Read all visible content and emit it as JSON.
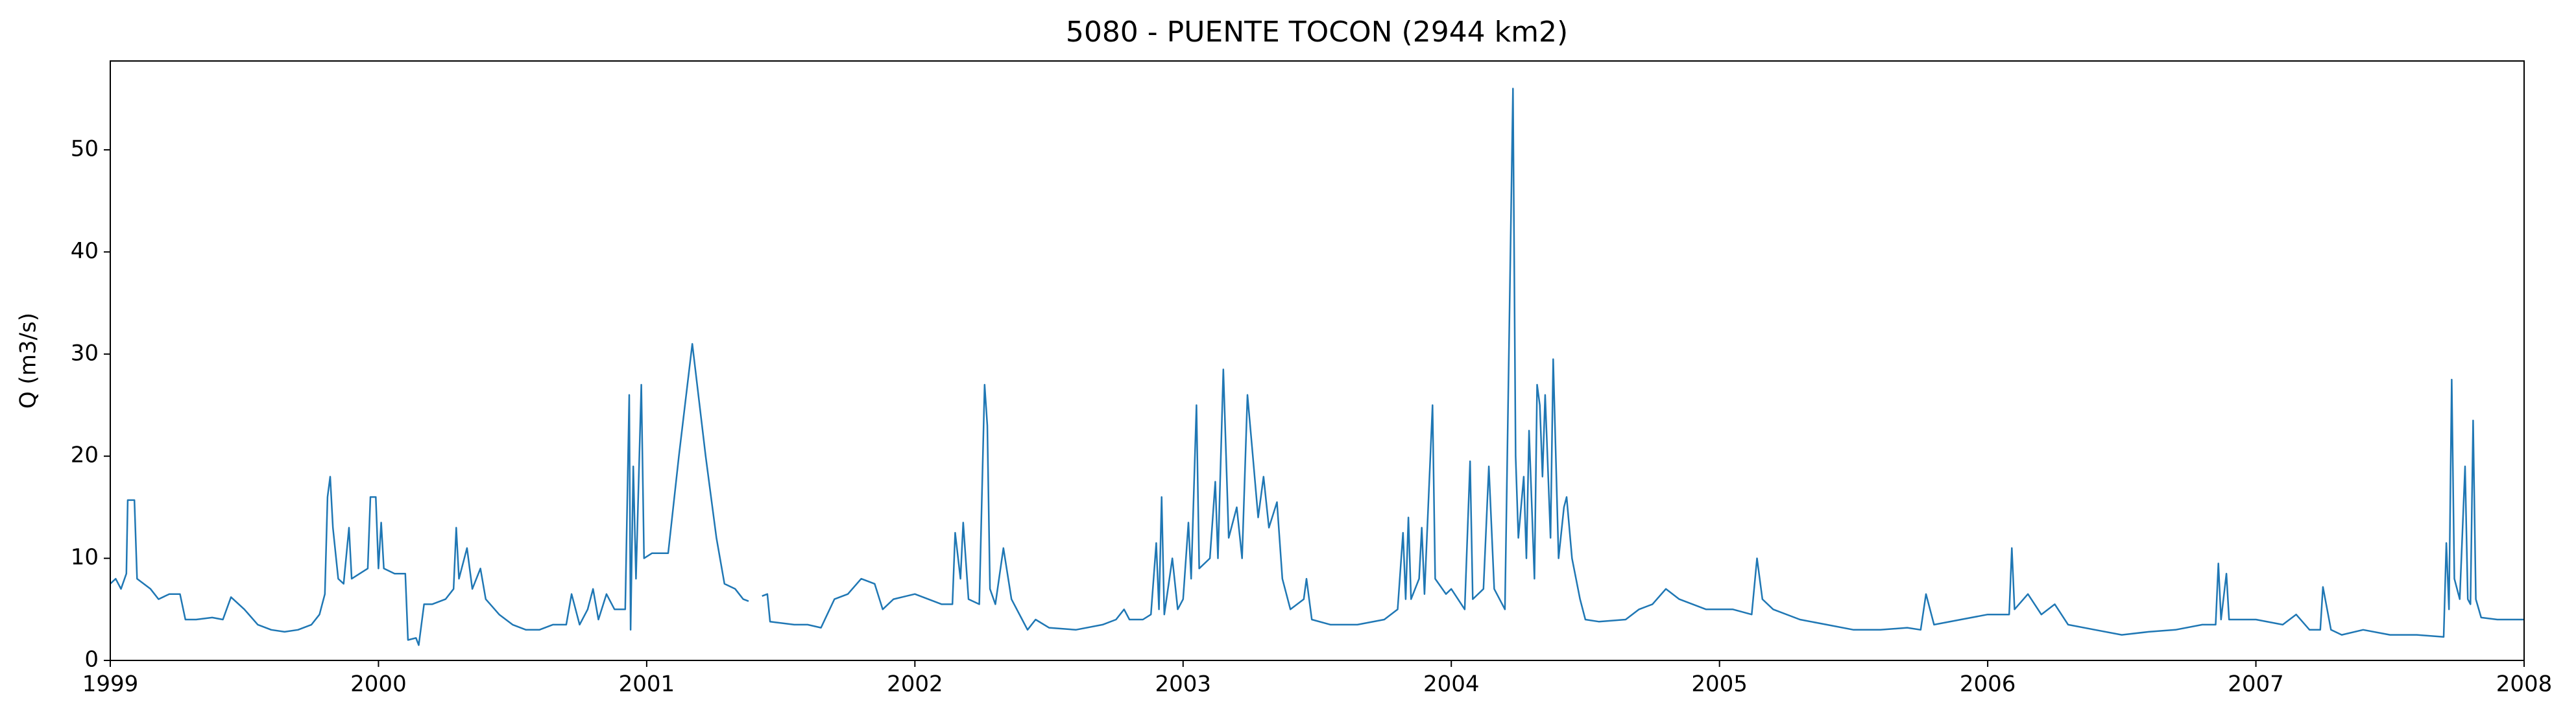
{
  "chart_data": {
    "type": "line",
    "title": "5080 - PUENTE TOCON (2944 km2)",
    "y_label": "Q (m3/s)",
    "color": "#1f77b4",
    "x": [
      1999.0,
      1999.02,
      1999.04,
      1999.06,
      1999.065,
      1999.09,
      1999.1,
      1999.15,
      1999.18,
      1999.22,
      1999.26,
      1999.28,
      1999.32,
      1999.38,
      1999.42,
      1999.45,
      1999.5,
      1999.55,
      1999.6,
      1999.65,
      1999.7,
      1999.75,
      1999.78,
      1999.8,
      1999.81,
      1999.82,
      1999.83,
      1999.85,
      1999.87,
      1999.89,
      1999.9,
      1999.93,
      1999.96,
      1999.97,
      1999.99,
      2000.0,
      2000.01,
      2000.02,
      2000.06,
      2000.1,
      2000.11,
      2000.14,
      2000.15,
      2000.17,
      2000.2,
      2000.25,
      2000.28,
      2000.29,
      2000.3,
      2000.33,
      2000.35,
      2000.38,
      2000.4,
      2000.45,
      2000.5,
      2000.55,
      2000.6,
      2000.65,
      2000.7,
      2000.72,
      2000.75,
      2000.78,
      2000.8,
      2000.82,
      2000.85,
      2000.88,
      2000.9,
      2000.92,
      2000.935,
      2000.94,
      2000.95,
      2000.96,
      2000.98,
      2000.99,
      2001.02,
      2001.08,
      2001.12,
      2001.17,
      2001.22,
      2001.26,
      2001.29,
      2001.33,
      2001.36,
      2001.38,
      2001.4,
      2001.43,
      2001.45,
      2001.46,
      2001.55,
      2001.6,
      2001.65,
      2001.7,
      2001.75,
      2001.8,
      2001.85,
      2001.88,
      2001.92,
      2002.0,
      2002.05,
      2002.1,
      2002.14,
      2002.15,
      2002.17,
      2002.18,
      2002.2,
      2002.24,
      2002.26,
      2002.27,
      2002.28,
      2002.3,
      2002.33,
      2002.36,
      2002.4,
      2002.42,
      2002.45,
      2002.5,
      2002.6,
      2002.7,
      2002.75,
      2002.78,
      2002.8,
      2002.85,
      2002.88,
      2002.9,
      2002.91,
      2002.92,
      2002.93,
      2002.96,
      2002.98,
      2003.0,
      2003.02,
      2003.03,
      2003.05,
      2003.06,
      2003.1,
      2003.12,
      2003.13,
      2003.15,
      2003.17,
      2003.2,
      2003.22,
      2003.24,
      2003.26,
      2003.28,
      2003.3,
      2003.32,
      2003.35,
      2003.37,
      2003.4,
      2003.45,
      2003.46,
      2003.48,
      2003.55,
      2003.65,
      2003.75,
      2003.8,
      2003.82,
      2003.83,
      2003.84,
      2003.85,
      2003.88,
      2003.89,
      2003.9,
      2003.93,
      2003.94,
      2003.98,
      2004.0,
      2004.05,
      2004.07,
      2004.08,
      2004.12,
      2004.14,
      2004.16,
      2004.2,
      2004.23,
      2004.24,
      2004.25,
      2004.27,
      2004.28,
      2004.29,
      2004.31,
      2004.32,
      2004.33,
      2004.34,
      2004.35,
      2004.37,
      2004.38,
      2004.4,
      2004.42,
      2004.43,
      2004.45,
      2004.48,
      2004.5,
      2004.55,
      2004.65,
      2004.7,
      2004.75,
      2004.8,
      2004.85,
      2004.9,
      2004.95,
      2005.05,
      2005.12,
      2005.14,
      2005.16,
      2005.2,
      2005.3,
      2005.4,
      2005.5,
      2005.6,
      2005.7,
      2005.75,
      2005.77,
      2005.8,
      2005.9,
      2006.0,
      2006.08,
      2006.09,
      2006.1,
      2006.15,
      2006.2,
      2006.25,
      2006.3,
      2006.4,
      2006.5,
      2006.6,
      2006.7,
      2006.8,
      2006.85,
      2006.86,
      2006.87,
      2006.89,
      2006.9,
      2007.0,
      2007.1,
      2007.15,
      2007.2,
      2007.24,
      2007.25,
      2007.28,
      2007.32,
      2007.4,
      2007.5,
      2007.6,
      2007.7,
      2007.71,
      2007.72,
      2007.73,
      2007.74,
      2007.76,
      2007.78,
      2007.79,
      2007.8,
      2007.81,
      2007.82,
      2007.84,
      2007.9,
      2008.0
    ],
    "values": [
      7.5,
      8,
      7,
      8.5,
      15.7,
      15.7,
      8,
      7,
      6,
      6.5,
      6.5,
      4,
      4,
      4.2,
      4,
      6.2,
      5,
      3.5,
      3,
      2.8,
      3,
      3.5,
      4.5,
      6.5,
      16,
      18,
      13,
      8,
      7.5,
      13,
      8,
      8.5,
      9,
      16,
      16,
      9,
      13.5,
      9,
      8.5,
      8.5,
      2,
      2.2,
      1.5,
      5.5,
      5.5,
      6,
      7,
      13,
      8,
      11,
      7,
      9,
      6,
      4.5,
      3.5,
      3,
      3,
      3.5,
      3.5,
      6.5,
      3.5,
      5,
      7,
      4,
      6.5,
      5,
      5,
      5,
      26,
      3,
      19,
      8,
      27,
      10,
      10.5,
      10.5,
      20,
      31,
      20,
      12,
      7.5,
      7,
      6,
      5.8,
      null,
      6.3,
      6.5,
      3.8,
      3.5,
      3.5,
      3.2,
      6,
      6.5,
      8,
      7.5,
      5,
      6,
      6.5,
      6,
      5.5,
      5.5,
      12.5,
      8,
      13.5,
      6,
      5.5,
      27,
      23,
      7,
      5.5,
      11,
      6,
      4,
      3,
      4,
      3.2,
      3,
      3.5,
      4,
      5,
      4,
      4,
      4.5,
      11.5,
      5,
      16,
      4.5,
      10,
      5,
      6,
      13.5,
      8,
      25,
      9,
      10,
      17.5,
      10,
      28.5,
      12,
      15,
      10,
      26,
      20,
      14,
      18,
      13,
      15.5,
      8,
      5,
      6,
      8,
      4,
      3.5,
      3.5,
      4,
      5,
      12.5,
      6,
      14,
      6,
      8,
      13,
      6.5,
      25,
      8,
      6.5,
      7,
      5,
      19.5,
      6,
      7,
      19,
      7,
      5,
      56,
      20,
      12,
      18,
      10,
      22.5,
      8,
      27,
      25,
      18,
      26,
      12,
      29.5,
      10,
      15,
      16,
      10,
      6,
      4,
      3.8,
      4,
      5,
      5.5,
      7,
      6,
      5.5,
      5,
      5,
      4.5,
      10,
      6,
      5,
      4,
      3.5,
      3,
      3,
      3.2,
      3,
      6.5,
      3.5,
      4,
      4.5,
      4.5,
      11,
      5,
      6.5,
      4.5,
      5.5,
      3.5,
      3,
      2.5,
      2.8,
      3,
      3.5,
      3.5,
      9.5,
      4,
      8.5,
      4,
      4,
      3.5,
      4.5,
      3,
      3,
      7.2,
      3,
      2.5,
      3,
      2.5,
      2.5,
      2.3,
      11.5,
      5,
      27.5,
      8,
      6,
      19,
      6,
      5.5,
      23.5,
      6,
      4.2,
      4,
      4
    ],
    "xlim": [
      1999,
      2008
    ],
    "xticks": [
      1999,
      2000,
      2001,
      2002,
      2003,
      2004,
      2005,
      2006,
      2007,
      2008
    ],
    "ylim": [
      0,
      58.7
    ],
    "yticks": [
      0,
      10,
      20,
      30,
      40,
      50
    ]
  }
}
